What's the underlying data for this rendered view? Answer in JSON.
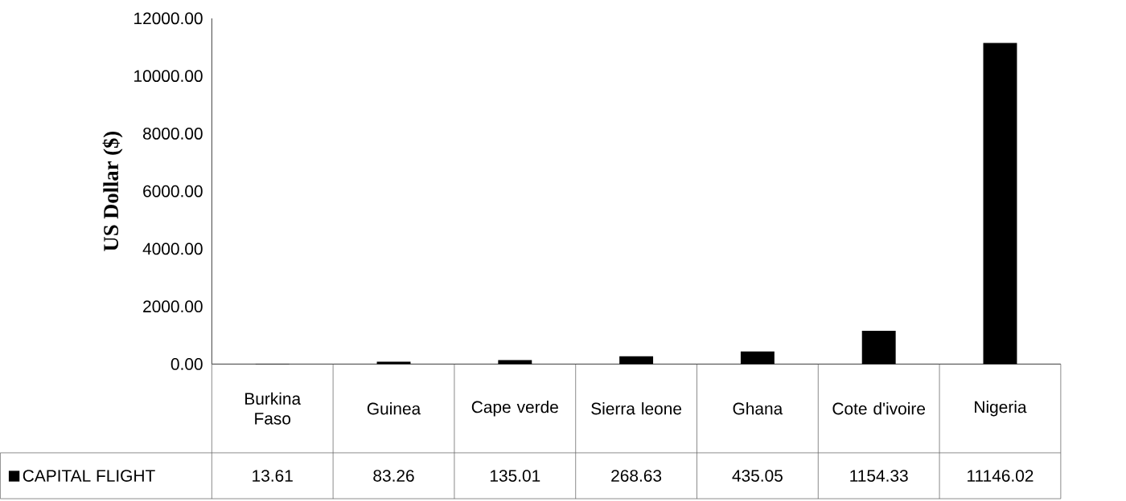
{
  "chart_data": {
    "type": "bar",
    "ylabel": "US Dollar ($)",
    "categories": [
      "Burkina Faso",
      "Guinea",
      "Cape verde",
      "Sierra leone",
      "Ghana",
      "Cote d'ivoire",
      "Nigeria"
    ],
    "series": [
      {
        "name": "CAPITAL FLIGHT",
        "color": "#000000",
        "values": [
          13.61,
          83.26,
          135.01,
          268.63,
          435.05,
          1154.33,
          11146.02
        ]
      }
    ],
    "ylim": [
      0,
      12000
    ],
    "yticks": [
      {
        "value": 0,
        "label": "0.00"
      },
      {
        "value": 2000,
        "label": "2000.00"
      },
      {
        "value": 4000,
        "label": "4000.00"
      },
      {
        "value": 6000,
        "label": "6000.00"
      },
      {
        "value": 8000,
        "label": "8000.00"
      },
      {
        "value": 10000,
        "label": "10000.00"
      },
      {
        "value": 12000,
        "label": "12000.00"
      }
    ],
    "data_labels": true,
    "grid": false,
    "legend": "bottom left"
  }
}
